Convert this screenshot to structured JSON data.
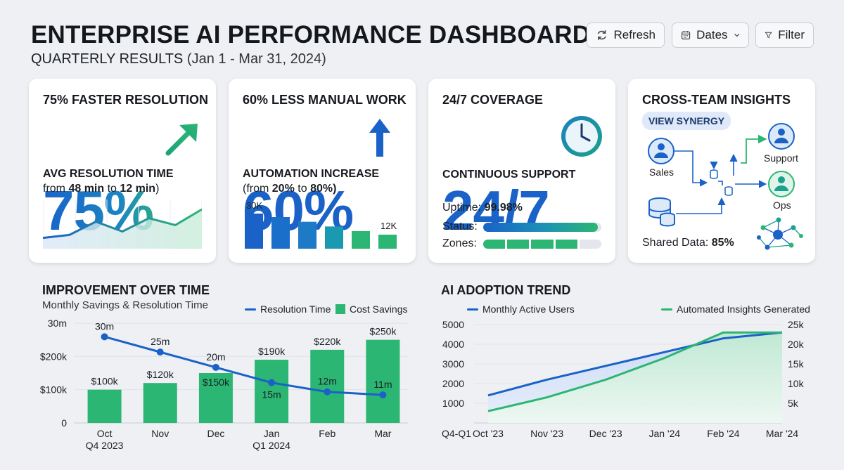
{
  "header": {
    "title": "ENTERPRISE AI PERFORMANCE DASHBOARD",
    "subtitle_main": "QUARTERLY RESULTS",
    "subtitle_range": "(Jan 1 - Mar 31, 2024)",
    "refresh_label": "Refresh",
    "dates_label": "Dates",
    "filter_label": "Filter"
  },
  "cards": {
    "resolution": {
      "title": "75% FASTER RESOLUTION",
      "big": "75%",
      "label": "AVG RESOLUTION TIME",
      "from_text": "from",
      "from_value": "48 min",
      "to_text": "to",
      "to_value": "12 min",
      "spark": [
        0.22,
        0.28,
        0.55,
        0.35,
        0.62,
        0.48,
        0.8
      ]
    },
    "automation": {
      "title": "60% LESS MANUAL WORK",
      "big": "60%",
      "label": "AUTOMATION INCREASE",
      "from_prefix": "(from",
      "from_value": "20%",
      "to_text": "to",
      "to_value": "80%)",
      "bar_top_label": "30K",
      "bar_end_label": "12K",
      "bars": [
        30,
        27,
        23,
        19,
        15,
        12
      ]
    },
    "coverage": {
      "title": "24/7 COVERAGE",
      "big": "24/7",
      "label": "CONTINUOUS SUPPORT",
      "uptime_label": "Uptime:",
      "uptime_value": "99.98%",
      "status_label": "Status:",
      "status_progress": 0.97,
      "zones_label": "Zones:",
      "zones_active": 4,
      "zones_total": 5
    },
    "insights": {
      "title": "CROSS-TEAM INSIGHTS",
      "pill": "VIEW SYNERGY",
      "node_sales": "Sales",
      "node_support": "Support",
      "node_ops": "Ops",
      "shared_label": "Shared Data:",
      "shared_value": "85%"
    }
  },
  "improvement": {
    "title": "IMPROVEMENT OVER TIME",
    "subtitle": "Monthly Savings & Resolution Time",
    "legend_line": "Resolution Time",
    "legend_bar": "Cost Savings"
  },
  "adoption": {
    "title": "AI ADOPTION TREND",
    "legend_users": "Monthly Active Users",
    "legend_insights": "Automated Insights Generated"
  },
  "colors": {
    "blue": "#1a62c8",
    "green": "#2bb673",
    "teal": "#1aa38a"
  },
  "chart_data": [
    {
      "type": "bar",
      "title": "IMPROVEMENT OVER TIME",
      "subtitle": "Monthly Savings & Resolution Time",
      "categories": [
        "Oct",
        "Nov",
        "Dec",
        "Jan",
        "Feb",
        "Mar"
      ],
      "category_sublabels": [
        "Q4 2023",
        "",
        "",
        "Q1 2024",
        "",
        ""
      ],
      "y_ticks": [
        "0",
        "$100k",
        "$200k",
        "30m"
      ],
      "series": [
        {
          "name": "Cost Savings",
          "kind": "bar",
          "values": [
            100,
            120,
            150,
            190,
            220,
            250
          ],
          "labels": [
            "$100k",
            "$120k",
            "$150k",
            "$190k",
            "$220k",
            "$250k"
          ]
        },
        {
          "name": "Resolution Time",
          "kind": "line",
          "values": [
            30,
            25,
            20,
            15,
            12,
            11
          ],
          "labels": [
            "30m",
            "25m",
            "20m",
            "15m",
            "12m",
            "11m"
          ]
        }
      ],
      "legend": "top-right"
    },
    {
      "type": "area",
      "title": "AI ADOPTION TREND",
      "x": [
        "Oct '23",
        "Nov '23",
        "Dec '23",
        "Jan '24",
        "Feb '24",
        "Mar '24"
      ],
      "x_extra_label": "Q4-Q1",
      "y_left_ticks": [
        "1000",
        "2000",
        "3000",
        "4000",
        "5000"
      ],
      "y_right_ticks": [
        "5k",
        "10k",
        "15k",
        "20k",
        "25k"
      ],
      "series": [
        {
          "name": "Monthly Active Users",
          "axis": "left",
          "values": [
            1400,
            2200,
            2900,
            3600,
            4300,
            4600
          ]
        },
        {
          "name": "Automated Insights Generated",
          "axis": "right",
          "values": [
            3000,
            6500,
            11000,
            16500,
            25000,
            23000
          ]
        }
      ],
      "legend": "top"
    }
  ]
}
